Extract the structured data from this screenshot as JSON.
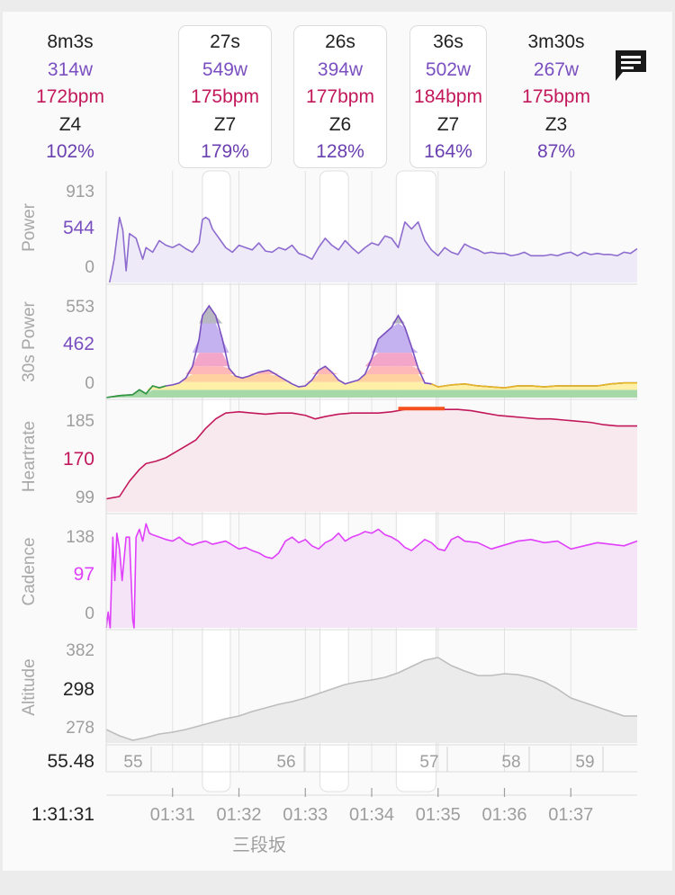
{
  "segments": [
    {
      "time": "8m3s",
      "power": "314w",
      "hr": "172bpm",
      "zone": "Z4",
      "pct": "102%",
      "boxed": false
    },
    {
      "time": "27s",
      "power": "549w",
      "hr": "175bpm",
      "zone": "Z7",
      "pct": "179%",
      "boxed": true
    },
    {
      "time": "26s",
      "power": "394w",
      "hr": "177bpm",
      "zone": "Z6",
      "pct": "128%",
      "boxed": true
    },
    {
      "time": "36s",
      "power": "502w",
      "hr": "184bpm",
      "zone": "Z7",
      "pct": "164%",
      "boxed": true
    },
    {
      "time": "3m30s",
      "power": "267w",
      "hr": "175bpm",
      "zone": "Z3",
      "pct": "87%",
      "boxed": false
    }
  ],
  "icons": {
    "comment": "comment-icon"
  },
  "chart_data": {
    "type": "line",
    "x_unit": "minutes (elapsed 01:30.0 - 01:38.0)",
    "x_ticks": [
      "01:31",
      "01:32",
      "01:33",
      "01:34",
      "01:35",
      "01:36",
      "01:37"
    ],
    "cursor_label": "1:31:31",
    "cursor_distance": "55.48",
    "distance_ticks": [
      "55",
      "56",
      "57",
      "58",
      "59"
    ],
    "place_label": "三段坂",
    "highlight_spans": [
      [
        91.45,
        91.87
      ],
      [
        93.22,
        93.65
      ],
      [
        94.37,
        94.97
      ]
    ],
    "panels": [
      {
        "key": "power",
        "ylabel": "Power",
        "ylim": [
          0,
          913
        ],
        "tick_labels": [
          "913",
          "544",
          "0"
        ],
        "highlight_label": "544",
        "color": "#8e6ccf",
        "fill": "#eeeaf7",
        "x": [
          90.05,
          90.08,
          90.12,
          90.2,
          90.25,
          90.3,
          90.35,
          90.45,
          90.55,
          90.6,
          90.7,
          90.8,
          90.9,
          91.0,
          91.1,
          91.2,
          91.3,
          91.4,
          91.45,
          91.5,
          91.55,
          91.6,
          91.7,
          91.8,
          91.9,
          92.0,
          92.1,
          92.2,
          92.3,
          92.4,
          92.5,
          92.6,
          92.7,
          92.8,
          92.9,
          93.0,
          93.1,
          93.2,
          93.3,
          93.4,
          93.5,
          93.6,
          93.7,
          93.8,
          93.9,
          94.0,
          94.1,
          94.2,
          94.3,
          94.4,
          94.5,
          94.6,
          94.7,
          94.8,
          94.9,
          95.0,
          95.1,
          95.2,
          95.3,
          95.4,
          95.5,
          95.6,
          95.7,
          95.8,
          95.9,
          96.0,
          96.1,
          96.2,
          96.3,
          96.4,
          96.5,
          96.6,
          96.7,
          96.8,
          96.9,
          97.0,
          97.1,
          97.2,
          97.3,
          97.4,
          97.5,
          97.6,
          97.7,
          97.8,
          97.9,
          98.0
        ],
        "values": [
          0,
          80,
          200,
          560,
          450,
          100,
          420,
          380,
          200,
          300,
          260,
          360,
          320,
          300,
          330,
          290,
          260,
          340,
          540,
          560,
          540,
          460,
          380,
          300,
          260,
          320,
          300,
          280,
          340,
          270,
          260,
          300,
          280,
          320,
          250,
          230,
          200,
          300,
          380,
          320,
          280,
          360,
          300,
          250,
          300,
          340,
          320,
          400,
          380,
          300,
          520,
          460,
          520,
          360,
          280,
          230,
          300,
          260,
          240,
          330,
          300,
          280,
          250,
          260,
          250,
          250,
          230,
          240,
          260,
          230,
          230,
          230,
          240,
          230,
          250,
          260,
          230,
          260,
          240,
          250,
          240,
          240,
          230,
          260,
          250,
          290
        ]
      },
      {
        "key": "power30s",
        "ylabel": "30s Power",
        "ylim": [
          0,
          553
        ],
        "tick_labels": [
          "553",
          "462",
          "0"
        ],
        "highlight_label": "462",
        "color": "#2e2e3a",
        "zone_bands": [
          {
            "from": 0,
            "to": 40,
            "color": "#a7d8a8"
          },
          {
            "from": 40,
            "to": 80,
            "color": "#fff0a8"
          },
          {
            "from": 80,
            "to": 120,
            "color": "#ffd0a0"
          },
          {
            "from": 120,
            "to": 160,
            "color": "#ffb8b8"
          },
          {
            "from": 160,
            "to": 230,
            "color": "#f4a6c8"
          },
          {
            "from": 230,
            "to": 380,
            "color": "#c4b2f0"
          },
          {
            "from": 380,
            "to": 553,
            "color": "#b8b8c2"
          }
        ],
        "x": [
          90.0,
          90.2,
          90.4,
          90.5,
          90.6,
          90.7,
          90.8,
          90.9,
          91.0,
          91.1,
          91.2,
          91.3,
          91.4,
          91.45,
          91.55,
          91.65,
          91.75,
          91.85,
          91.95,
          92.05,
          92.15,
          92.3,
          92.45,
          92.6,
          92.7,
          92.8,
          92.9,
          93.0,
          93.1,
          93.2,
          93.3,
          93.4,
          93.5,
          93.6,
          93.7,
          93.8,
          93.9,
          94.0,
          94.1,
          94.2,
          94.3,
          94.4,
          94.5,
          94.6,
          94.7,
          94.8,
          94.9,
          95.0,
          95.1,
          95.2,
          95.4,
          95.6,
          95.8,
          96.0,
          96.2,
          96.4,
          96.6,
          96.8,
          97.0,
          97.2,
          97.4,
          97.6,
          97.8,
          98.0
        ],
        "values": [
          0,
          10,
          15,
          40,
          20,
          60,
          50,
          60,
          65,
          75,
          100,
          160,
          300,
          420,
          470,
          420,
          300,
          150,
          110,
          100,
          110,
          130,
          140,
          110,
          90,
          70,
          55,
          60,
          90,
          140,
          160,
          130,
          90,
          70,
          80,
          90,
          120,
          200,
          300,
          330,
          360,
          420,
          360,
          260,
          150,
          75,
          70,
          55,
          60,
          65,
          70,
          60,
          55,
          50,
          60,
          60,
          55,
          60,
          60,
          60,
          60,
          70,
          75,
          75
        ]
      },
      {
        "key": "heartrate",
        "ylabel": "Heartrate",
        "ylim": [
          99,
          190
        ],
        "tick_labels": [
          "185",
          "170",
          "99"
        ],
        "highlight_label": "170",
        "color": "#c2185b",
        "fill": "#f8e9ee",
        "max_marker": {
          "from": 94.4,
          "to": 95.1,
          "color": "#f4511e"
        },
        "x": [
          90.0,
          90.2,
          90.35,
          90.5,
          90.6,
          90.75,
          90.9,
          91.05,
          91.2,
          91.35,
          91.5,
          91.65,
          91.8,
          92.0,
          92.2,
          92.4,
          92.6,
          92.8,
          93.0,
          93.15,
          93.3,
          93.5,
          93.7,
          93.9,
          94.1,
          94.3,
          94.5,
          94.7,
          94.9,
          95.1,
          95.3,
          95.5,
          95.7,
          95.9,
          96.1,
          96.3,
          96.5,
          96.7,
          96.9,
          97.1,
          97.3,
          97.5,
          97.7,
          98.0
        ],
        "values": [
          110,
          112,
          125,
          135,
          140,
          142,
          145,
          150,
          155,
          160,
          170,
          178,
          183,
          184,
          183,
          182,
          183,
          183,
          181,
          178,
          180,
          182,
          183,
          183,
          183,
          184,
          186,
          186,
          186,
          186,
          186,
          185,
          183,
          181,
          180,
          179,
          178,
          178,
          177,
          176,
          175,
          173,
          172,
          172
        ]
      },
      {
        "key": "cadence",
        "ylabel": "Cadence",
        "ylim": [
          0,
          138
        ],
        "tick_labels": [
          "138",
          "97",
          "0"
        ],
        "highlight_label": "97",
        "color": "#e040fb",
        "fill": "#f5e3f8",
        "x": [
          90.0,
          90.03,
          90.06,
          90.1,
          90.13,
          90.16,
          90.2,
          90.24,
          90.3,
          90.35,
          90.4,
          90.42,
          90.45,
          90.5,
          90.55,
          90.6,
          90.65,
          90.7,
          90.8,
          90.9,
          91.0,
          91.1,
          91.2,
          91.3,
          91.4,
          91.5,
          91.6,
          91.7,
          91.8,
          91.9,
          92.0,
          92.1,
          92.2,
          92.3,
          92.4,
          92.5,
          92.6,
          92.7,
          92.8,
          92.9,
          93.0,
          93.1,
          93.2,
          93.3,
          93.4,
          93.5,
          93.6,
          93.7,
          93.8,
          93.9,
          94.0,
          94.1,
          94.2,
          94.3,
          94.4,
          94.5,
          94.6,
          94.7,
          94.8,
          94.9,
          95.0,
          95.1,
          95.2,
          95.3,
          95.4,
          95.6,
          95.8,
          96.0,
          96.2,
          96.4,
          96.6,
          96.8,
          97.0,
          97.2,
          97.4,
          97.6,
          97.8,
          98.0
        ],
        "values": [
          0,
          20,
          0,
          115,
          60,
          120,
          100,
          60,
          115,
          115,
          10,
          0,
          115,
          125,
          110,
          132,
          120,
          118,
          115,
          112,
          110,
          115,
          108,
          105,
          108,
          110,
          106,
          108,
          110,
          105,
          100,
          102,
          98,
          95,
          90,
          88,
          95,
          110,
          115,
          108,
          112,
          104,
          100,
          108,
          112,
          120,
          110,
          115,
          118,
          122,
          120,
          125,
          118,
          115,
          110,
          102,
          98,
          105,
          112,
          108,
          100,
          98,
          112,
          116,
          110,
          108,
          100,
          105,
          110,
          112,
          108,
          110,
          100,
          104,
          108,
          106,
          104,
          110
        ]
      },
      {
        "key": "altitude",
        "ylabel": "Altitude",
        "ylim": [
          270,
          390
        ],
        "tick_labels": [
          "382",
          "298",
          "278"
        ],
        "highlight_label": "298",
        "color": "#bdbdbd",
        "fill": "#ebebeb",
        "x": [
          90.0,
          90.2,
          90.4,
          90.6,
          90.8,
          91.0,
          91.2,
          91.4,
          91.6,
          91.8,
          92.0,
          92.2,
          92.4,
          92.6,
          92.8,
          93.0,
          93.2,
          93.4,
          93.6,
          93.8,
          94.0,
          94.2,
          94.4,
          94.6,
          94.8,
          95.0,
          95.2,
          95.4,
          95.6,
          95.8,
          96.0,
          96.2,
          96.4,
          96.6,
          96.8,
          97.0,
          97.2,
          97.4,
          97.6,
          97.8,
          98.0
        ],
        "values": [
          285,
          278,
          273,
          276,
          280,
          282,
          285,
          289,
          293,
          297,
          300,
          305,
          309,
          313,
          316,
          320,
          325,
          330,
          335,
          338,
          340,
          343,
          348,
          355,
          362,
          365,
          356,
          350,
          345,
          345,
          347,
          346,
          343,
          338,
          330,
          320,
          315,
          310,
          305,
          300,
          300
        ]
      }
    ]
  }
}
